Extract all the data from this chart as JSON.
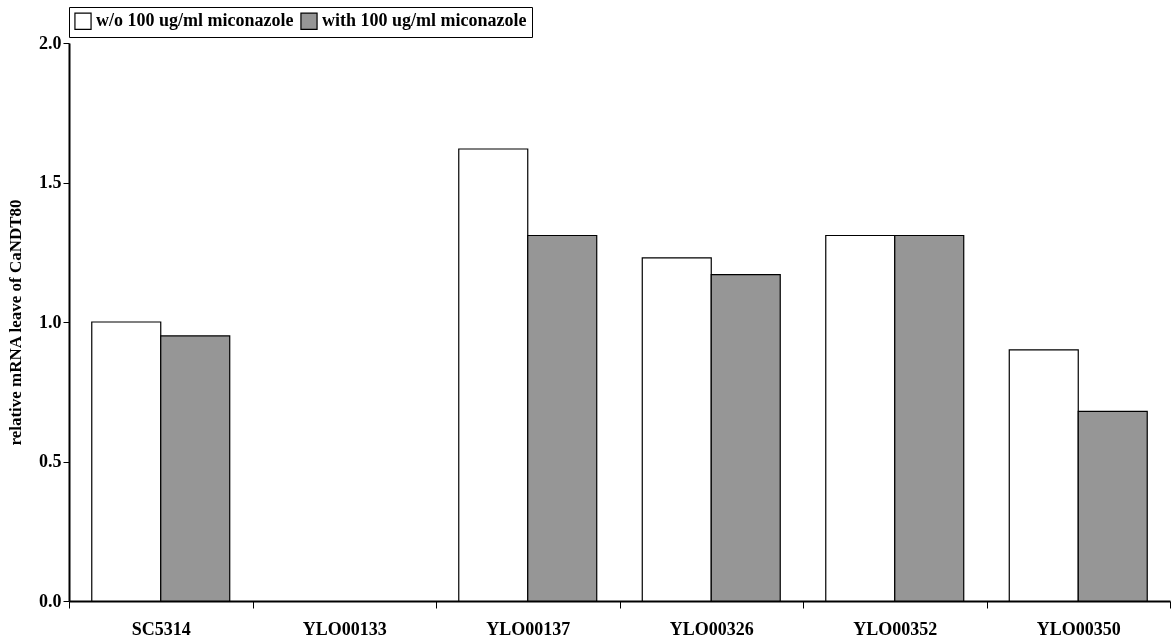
{
  "chart_data": {
    "type": "bar",
    "ylabel": "relative mRNA leave of CaNDT80",
    "categories": [
      "SC5314",
      "YLO00133",
      "YLO00137",
      "YLO00326",
      "YLO00352",
      "YLO00350"
    ],
    "series": [
      {
        "name": "w/o 100 ug/ml miconazole",
        "color": "#ffffff",
        "values": [
          1.0,
          null,
          1.62,
          1.23,
          1.31,
          0.9
        ]
      },
      {
        "name": "with 100 ug/ml miconazole",
        "color": "#969696",
        "values": [
          0.95,
          null,
          1.31,
          1.17,
          1.31,
          0.68
        ]
      }
    ],
    "ylim": [
      0,
      2.0
    ],
    "yticks": [
      {
        "value": 0,
        "label": "0.0"
      },
      {
        "value": 0.5,
        "label": "0.5"
      },
      {
        "value": 1,
        "label": "1.0"
      },
      {
        "value": 1.5,
        "label": "1.5"
      },
      {
        "value": 2,
        "label": "2.0"
      }
    ],
    "grid": false,
    "legend": "top"
  }
}
